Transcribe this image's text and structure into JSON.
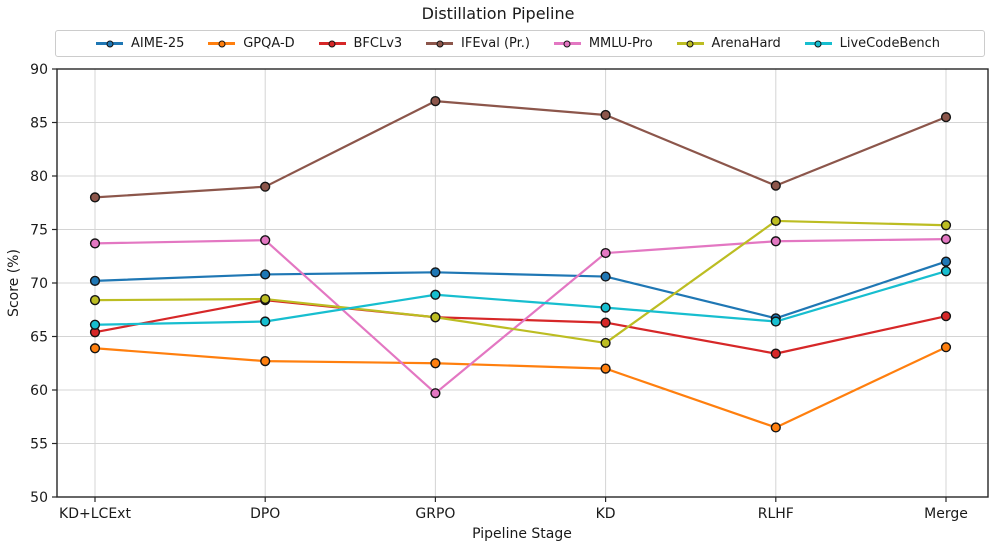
{
  "chart_data": {
    "type": "line",
    "title": "Distillation Pipeline",
    "xlabel": "Pipeline Stage",
    "ylabel": "Score (%)",
    "ylim": [
      50,
      90
    ],
    "yticks": [
      90,
      85,
      80,
      75,
      70,
      65,
      60,
      55,
      50
    ],
    "categories": [
      "KD+LCExt",
      "DPO",
      "GRPO",
      "KD",
      "RLHF",
      "Merge"
    ],
    "grid": true,
    "legend_position": "top",
    "marker": "circle",
    "marker_edge_color": "#141414",
    "series": [
      {
        "name": "AIME-25",
        "color": "#1f77b4",
        "values": [
          70.2,
          70.8,
          71.0,
          70.6,
          66.7,
          72.0
        ]
      },
      {
        "name": "GPQA-D",
        "color": "#ff7f0e",
        "values": [
          63.9,
          62.7,
          62.5,
          62.0,
          56.5,
          64.0
        ]
      },
      {
        "name": "BFCLv3",
        "color": "#d62728",
        "values": [
          65.4,
          68.4,
          66.8,
          66.3,
          63.4,
          66.9
        ]
      },
      {
        "name": "IFEval (Pr.)",
        "color": "#8c564b",
        "values": [
          78.0,
          79.0,
          87.0,
          85.7,
          79.1,
          85.5
        ]
      },
      {
        "name": "MMLU-Pro",
        "color": "#e377c2",
        "values": [
          73.7,
          74.0,
          59.7,
          72.8,
          73.9,
          74.1
        ]
      },
      {
        "name": "ArenaHard",
        "color": "#bcbd22",
        "values": [
          68.4,
          68.5,
          66.8,
          64.4,
          75.8,
          75.4
        ]
      },
      {
        "name": "LiveCodeBench",
        "color": "#17becf",
        "values": [
          66.1,
          66.4,
          68.9,
          67.7,
          66.4,
          71.1
        ]
      }
    ]
  }
}
